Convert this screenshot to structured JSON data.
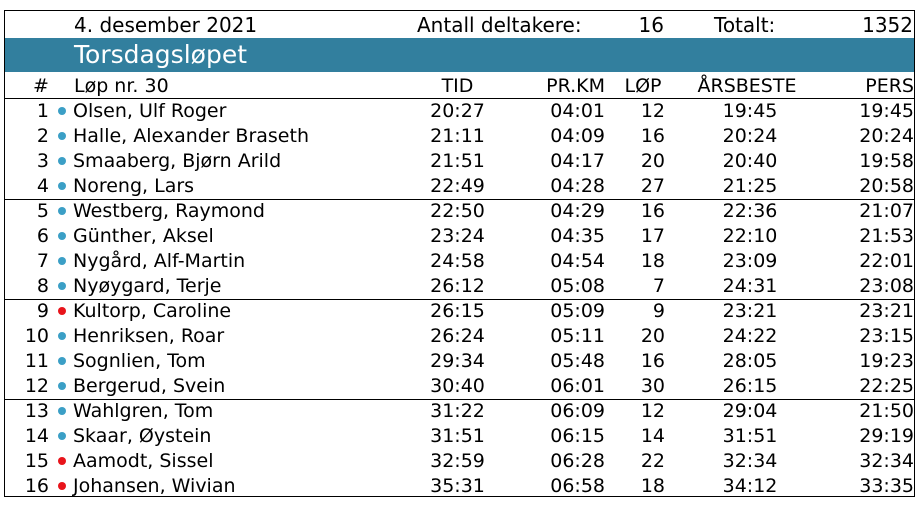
{
  "header": {
    "date": "4. desember 2021",
    "participants_label": "Antall deltakere:",
    "participants_value": "16",
    "total_label": "Totalt:",
    "total_value": "1352"
  },
  "banner": {
    "title": "Torsdagsløpet"
  },
  "columns": {
    "number": "#",
    "race": "Løp nr. 30",
    "time": "TID",
    "per_km": "PR.KM",
    "races": "LØP",
    "season_best": "ÅRSBESTE",
    "personal_best": "PERS"
  },
  "colors": {
    "banner": "#327f9e",
    "dot_blue": "#3b9fc6",
    "dot_red": "#e8141b"
  },
  "rows": [
    {
      "rank": "1",
      "dot": "blue",
      "name": "Olsen, Ulf Roger",
      "time": "20:27",
      "pace": "04:01",
      "races": "12",
      "season_best": "19:45",
      "pers": "19:45"
    },
    {
      "rank": "2",
      "dot": "blue",
      "name": "Halle, Alexander Braseth",
      "time": "21:11",
      "pace": "04:09",
      "races": "16",
      "season_best": "20:24",
      "pers": "20:24"
    },
    {
      "rank": "3",
      "dot": "blue",
      "name": "Smaaberg, Bjørn Arild",
      "time": "21:51",
      "pace": "04:17",
      "races": "20",
      "season_best": "20:40",
      "pers": "19:58"
    },
    {
      "rank": "4",
      "dot": "blue",
      "name": "Noreng, Lars",
      "time": "22:49",
      "pace": "04:28",
      "races": "27",
      "season_best": "21:25",
      "pers": "20:58"
    },
    {
      "rank": "5",
      "dot": "blue",
      "name": "Westberg, Raymond",
      "time": "22:50",
      "pace": "04:29",
      "races": "16",
      "season_best": "22:36",
      "pers": "21:07"
    },
    {
      "rank": "6",
      "dot": "blue",
      "name": "Günther, Aksel",
      "time": "23:24",
      "pace": "04:35",
      "races": "17",
      "season_best": "22:10",
      "pers": "21:53"
    },
    {
      "rank": "7",
      "dot": "blue",
      "name": "Nygård, Alf-Martin",
      "time": "24:58",
      "pace": "04:54",
      "races": "18",
      "season_best": "23:09",
      "pers": "22:01"
    },
    {
      "rank": "8",
      "dot": "blue",
      "name": "Nyøygard, Terje",
      "time": "26:12",
      "pace": "05:08",
      "races": "7",
      "season_best": "24:31",
      "pers": "23:08"
    },
    {
      "rank": "9",
      "dot": "red",
      "name": "Kultorp, Caroline",
      "time": "26:15",
      "pace": "05:09",
      "races": "9",
      "season_best": "23:21",
      "pers": "23:21"
    },
    {
      "rank": "10",
      "dot": "blue",
      "name": "Henriksen, Roar",
      "time": "26:24",
      "pace": "05:11",
      "races": "20",
      "season_best": "24:22",
      "pers": "23:15"
    },
    {
      "rank": "11",
      "dot": "blue",
      "name": "Sognlien, Tom",
      "time": "29:34",
      "pace": "05:48",
      "races": "16",
      "season_best": "28:05",
      "pers": "19:23"
    },
    {
      "rank": "12",
      "dot": "blue",
      "name": "Bergerud, Svein",
      "time": "30:40",
      "pace": "06:01",
      "races": "30",
      "season_best": "26:15",
      "pers": "22:25"
    },
    {
      "rank": "13",
      "dot": "blue",
      "name": "Wahlgren, Tom",
      "time": "31:22",
      "pace": "06:09",
      "races": "12",
      "season_best": "29:04",
      "pers": "21:50"
    },
    {
      "rank": "14",
      "dot": "blue",
      "name": "Skaar, Øystein",
      "time": "31:51",
      "pace": "06:15",
      "races": "14",
      "season_best": "31:51",
      "pers": "29:19"
    },
    {
      "rank": "15",
      "dot": "red",
      "name": "Aamodt, Sissel",
      "time": "32:59",
      "pace": "06:28",
      "races": "22",
      "season_best": "32:34",
      "pers": "32:34"
    },
    {
      "rank": "16",
      "dot": "red",
      "name": "Johansen, Wivian",
      "time": "35:31",
      "pace": "06:58",
      "races": "18",
      "season_best": "34:12",
      "pers": "33:35"
    }
  ]
}
